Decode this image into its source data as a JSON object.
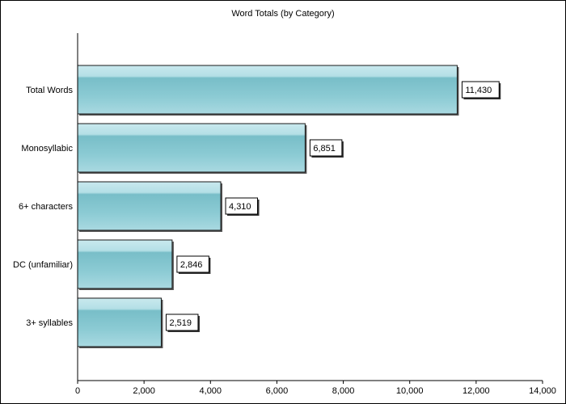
{
  "chart_data": {
    "type": "bar",
    "orientation": "horizontal",
    "title": "Word Totals (by Category)",
    "xlabel": "",
    "ylabel": "",
    "categories": [
      "Total Words",
      "Monosyllabic",
      "6+ characters",
      "DC (unfamiliar)",
      "3+ syllables"
    ],
    "values": [
      11430,
      6851,
      4310,
      2846,
      2519
    ],
    "data_labels": [
      "11,430",
      "6,851",
      "4,310",
      "2,846",
      "2,519"
    ],
    "xlim": [
      0,
      14000
    ],
    "x_ticks": [
      0,
      2000,
      4000,
      6000,
      8000,
      10000,
      12000,
      14000
    ],
    "x_tick_labels": [
      "0",
      "2,000",
      "4,000",
      "6,000",
      "8,000",
      "10,000",
      "12,000",
      "14,000"
    ],
    "grid": false,
    "legend": "none",
    "bar_color": "#7fc3cc"
  }
}
